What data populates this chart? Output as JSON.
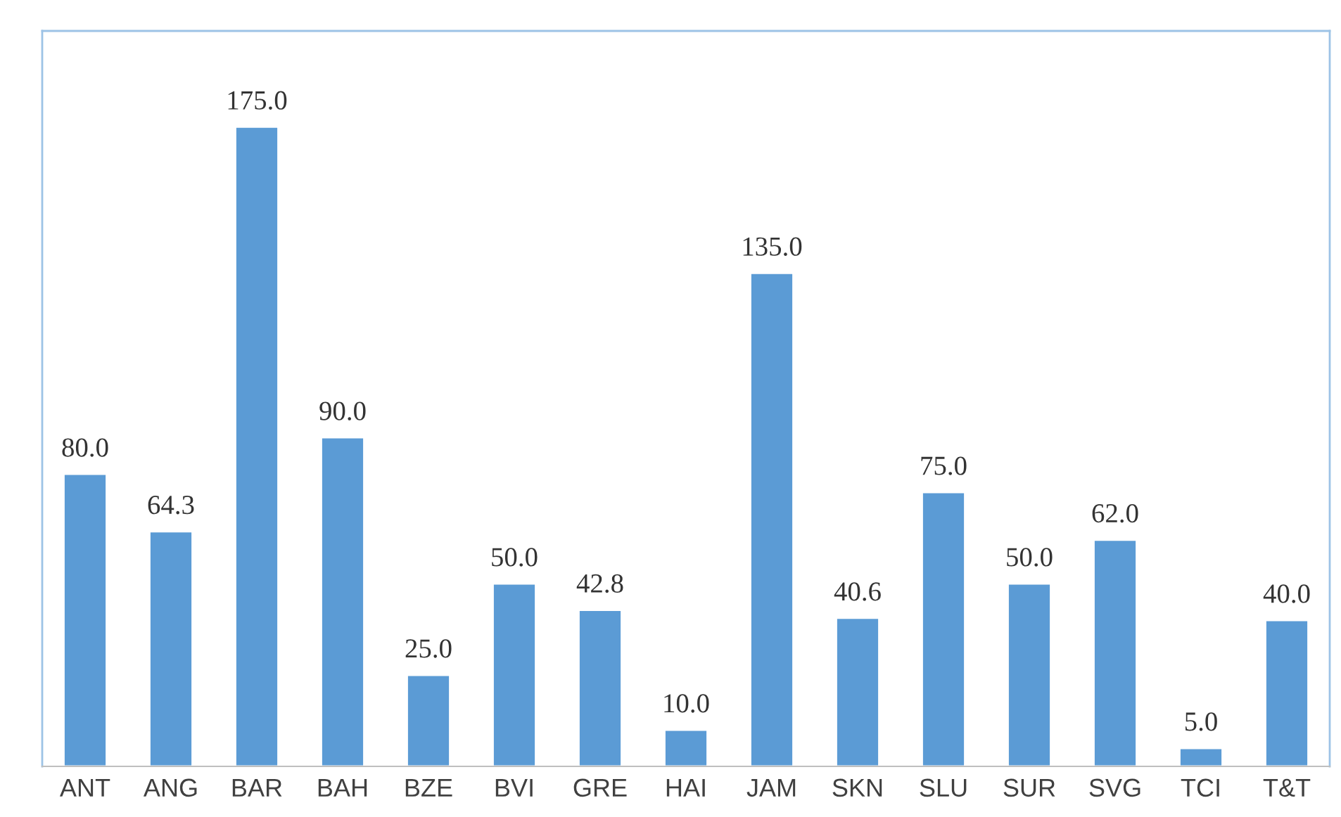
{
  "chart_data": {
    "type": "bar",
    "categories": [
      "ANT",
      "ANG",
      "BAR",
      "BAH",
      "BZE",
      "BVI",
      "GRE",
      "HAI",
      "JAM",
      "SKN",
      "SLU",
      "SUR",
      "SVG",
      "TCI",
      "T&T"
    ],
    "values": [
      80.0,
      64.3,
      175.0,
      90.0,
      25.0,
      50.0,
      42.8,
      10.0,
      135.0,
      40.6,
      75.0,
      50.0,
      62.0,
      5.0,
      40.0
    ],
    "value_labels": [
      "80.0",
      "64.3",
      "175.0",
      "90.0",
      "25.0",
      "50.0",
      "42.8",
      "10.0",
      "135.0",
      "40.6",
      "75.0",
      "50.0",
      "62.0",
      "5.0",
      "40.0"
    ],
    "color": "#5b9bd5",
    "grid": false,
    "legend": false
  }
}
